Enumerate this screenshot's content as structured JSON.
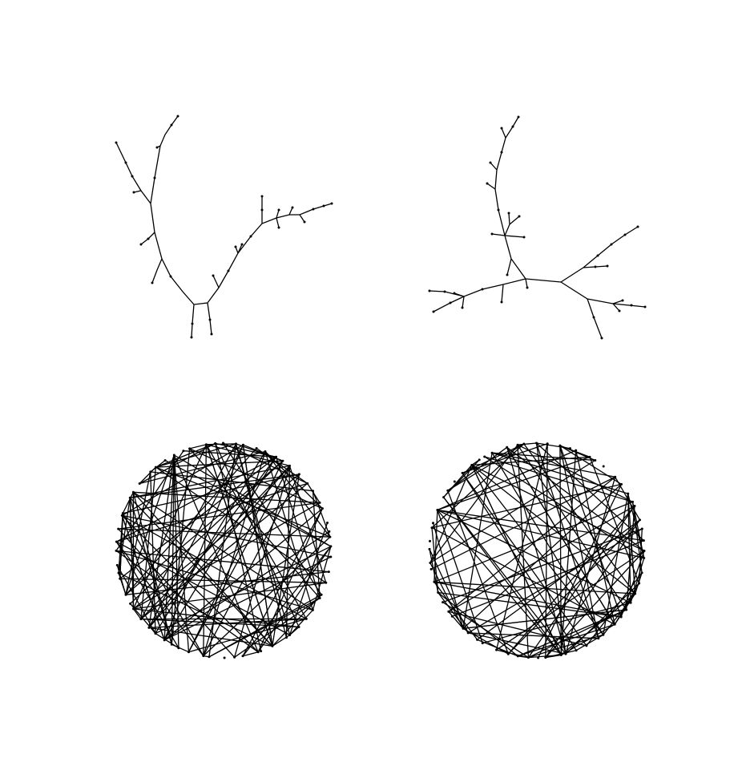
{
  "figure": {
    "background": "#ffffff",
    "edge_color": "#000000",
    "node_color": "#000000",
    "panels": [
      {
        "id": "tree-top-left",
        "kind": "tree",
        "position": "top-left"
      },
      {
        "id": "tree-top-right",
        "kind": "tree",
        "position": "top-right"
      },
      {
        "id": "circular-bottom-left",
        "kind": "circular",
        "position": "bottom-left"
      },
      {
        "id": "circular-bottom-right",
        "kind": "circular",
        "position": "bottom-right"
      }
    ]
  }
}
